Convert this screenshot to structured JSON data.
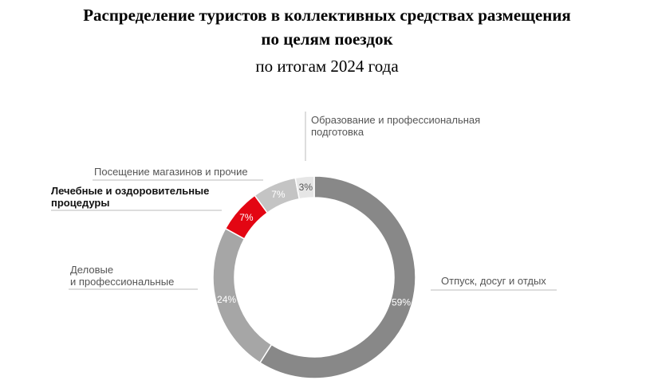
{
  "chart_data": {
    "type": "pie",
    "title_line1": "Распределение туристов в коллективных средствах размещения",
    "title_line2": "по целям поездок",
    "subtitle": "по итогам 2024 года",
    "categories": [
      "Отпуск, досуг и отдых",
      "Деловые и профессиональные",
      "Лечебные и оздоровительные процедуры",
      "Посещение магазинов и прочие",
      "Образование и профессиональная подготовка"
    ],
    "values": [
      59,
      24,
      7,
      7,
      3
    ],
    "value_labels": [
      "59%",
      "24%",
      "7%",
      "7%",
      "3%"
    ],
    "colors": [
      "#888888",
      "#a6a6a6",
      "#e30613",
      "#c4c4c4",
      "#e6e6e6"
    ],
    "label_lines": [
      [
        "Отпуск, досуг и отдых"
      ],
      [
        "Деловые",
        "и профессиональные"
      ],
      [
        "Лечебные и оздоровительные",
        "процедуры"
      ],
      [
        "Посещение магазинов и прочие"
      ],
      [
        "Образование и профессиональная",
        "подготовка"
      ]
    ],
    "style": "donut"
  }
}
